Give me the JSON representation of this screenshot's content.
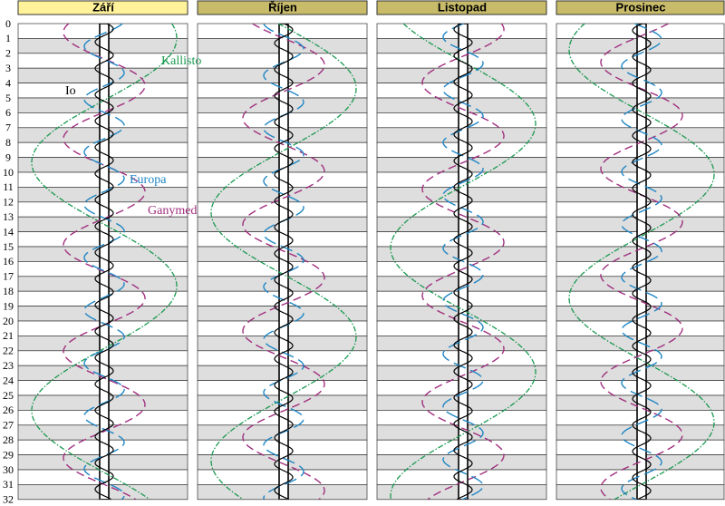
{
  "months": [
    "Září",
    "Říjen",
    "Listopad",
    "Prosinec"
  ],
  "days": [
    0,
    1,
    2,
    3,
    4,
    5,
    6,
    7,
    8,
    9,
    10,
    11,
    12,
    13,
    14,
    15,
    16,
    17,
    18,
    19,
    20,
    21,
    22,
    23,
    24,
    25,
    26,
    27,
    28,
    29,
    30,
    31,
    32
  ],
  "moons": {
    "callisto": "Kallisto",
    "io": "Io",
    "europa": "Europa",
    "ganymede": "Ganymed"
  }
}
